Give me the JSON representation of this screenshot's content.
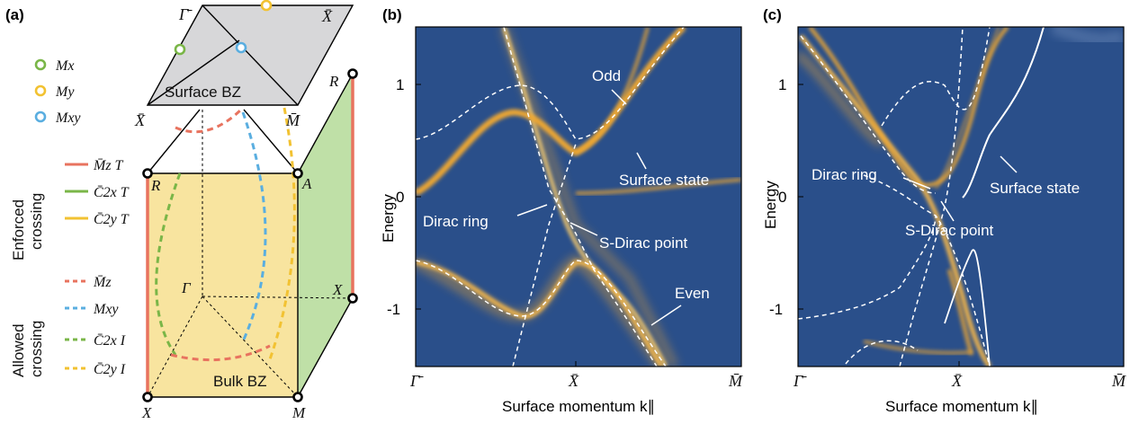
{
  "panel_a": {
    "tag": "(a)",
    "surface_label": "Surface BZ",
    "bulk_label": "Bulk BZ",
    "points": {
      "gamma_bar": "Γ̄",
      "x_bar_top": "X̄",
      "x_bar_left": "X̄",
      "m_bar": "M̄",
      "r_top": "R",
      "r_left": "R",
      "a": "A",
      "gamma": "Γ",
      "x_right": "X",
      "x_bottom": "X",
      "m": "M"
    },
    "legend_markers": [
      {
        "label": "Mx",
        "color": "#7ab648"
      },
      {
        "label": "My",
        "color": "#f2c232"
      },
      {
        "label": "Mxy",
        "color": "#5aaee0"
      }
    ],
    "enforced_title": [
      "Enforced",
      "crossing"
    ],
    "enforced": [
      {
        "label": "M̄z T",
        "color": "#e8735f"
      },
      {
        "label": "C̄2x T",
        "color": "#7ab648"
      },
      {
        "label": "C̄2y T",
        "color": "#f2c232"
      }
    ],
    "allowed_title": [
      "Allowed",
      "crossing"
    ],
    "allowed": [
      {
        "label": "M̄z",
        "color": "#e8735f"
      },
      {
        "label": "Mxy",
        "color": "#5aaee0"
      },
      {
        "label": "C̄2x I",
        "color": "#7ab648"
      },
      {
        "label": "C̄2y I",
        "color": "#f2c232"
      }
    ]
  },
  "chart_data": [
    {
      "type": "line",
      "tag": "(b)",
      "xlabel": "Surface momentum k∥",
      "ylabel": "Energy",
      "x_ticks": [
        "Γ̄",
        "X̄",
        "M̄"
      ],
      "y_ticks": [
        1,
        0,
        -1
      ],
      "ylim": [
        -1.5,
        1.5
      ],
      "annotations": [
        "Odd",
        "Surface state",
        "Dirac ring",
        "S-Dirac point",
        "Even"
      ],
      "colors": {
        "background": "#2a4f8a",
        "band": "#f0a830",
        "dashed": "#ffffff"
      }
    },
    {
      "type": "line",
      "tag": "(c)",
      "xlabel": "Surface momentum k∥",
      "ylabel": "Energy",
      "x_ticks": [
        "Γ̄",
        "X̄",
        "M̄"
      ],
      "y_ticks": [
        1,
        0,
        -1
      ],
      "ylim": [
        -1.5,
        1.5
      ],
      "annotations": [
        "Dirac ring",
        "Surface state",
        "S-Dirac point"
      ],
      "colors": {
        "background": "#2a4f8a",
        "band": "#f0a830",
        "dashed": "#ffffff"
      }
    }
  ]
}
